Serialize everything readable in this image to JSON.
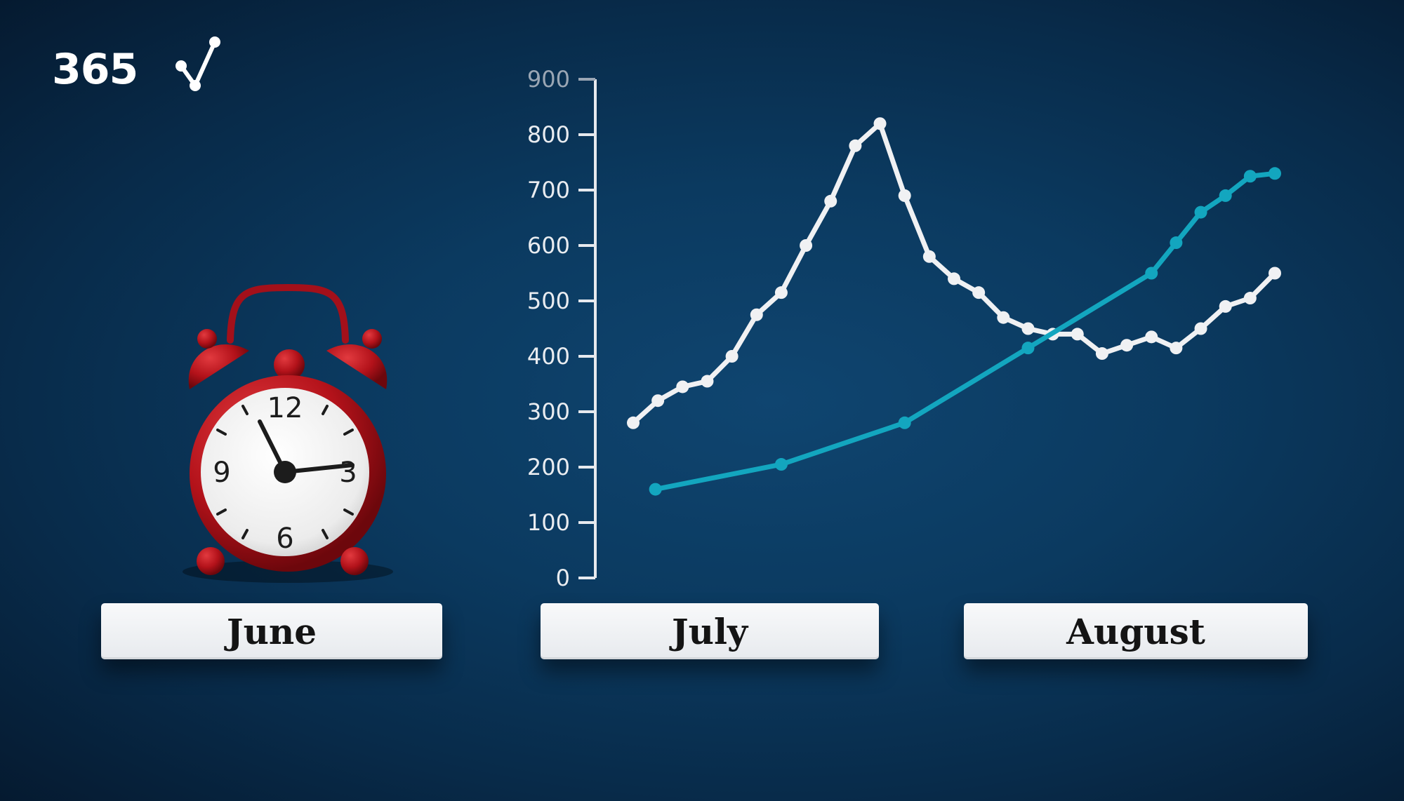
{
  "logo": {
    "text": "365",
    "icon": "network-check-icon"
  },
  "months": [
    "June",
    "July",
    "August"
  ],
  "clock": {
    "icon": "alarm-clock-icon",
    "color": "#c0141c",
    "numerals": [
      "12",
      "3",
      "6",
      "9"
    ]
  },
  "chart_data": {
    "type": "line",
    "title": "",
    "xlabel": "",
    "ylabel": "",
    "ylim": [
      0,
      900
    ],
    "yticks": [
      0,
      100,
      200,
      300,
      400,
      500,
      600,
      700,
      800,
      900
    ],
    "x_categories": [
      "July",
      "August"
    ],
    "series": [
      {
        "color": "#f0f1f3",
        "points": [
          [
            0,
            280
          ],
          [
            1,
            320
          ],
          [
            2,
            345
          ],
          [
            3,
            355
          ],
          [
            4,
            400
          ],
          [
            5,
            475
          ],
          [
            6,
            515
          ],
          [
            7,
            600
          ],
          [
            8,
            680
          ],
          [
            9,
            780
          ],
          [
            10,
            820
          ],
          [
            11,
            690
          ],
          [
            12,
            580
          ],
          [
            13,
            540
          ],
          [
            14,
            515
          ],
          [
            15,
            470
          ],
          [
            16,
            450
          ],
          [
            17,
            440
          ],
          [
            18,
            440
          ],
          [
            19,
            405
          ],
          [
            20,
            420
          ],
          [
            21,
            435
          ],
          [
            22,
            415
          ],
          [
            23,
            450
          ],
          [
            24,
            490
          ],
          [
            25,
            505
          ],
          [
            26,
            550
          ]
        ]
      },
      {
        "color": "#13a6bf",
        "points": [
          [
            0.9,
            160
          ],
          [
            6,
            205
          ],
          [
            11,
            280
          ],
          [
            16,
            415
          ],
          [
            21,
            550
          ],
          [
            22,
            605
          ],
          [
            23,
            660
          ],
          [
            24,
            690
          ],
          [
            25,
            725
          ],
          [
            26,
            730
          ]
        ]
      }
    ]
  }
}
